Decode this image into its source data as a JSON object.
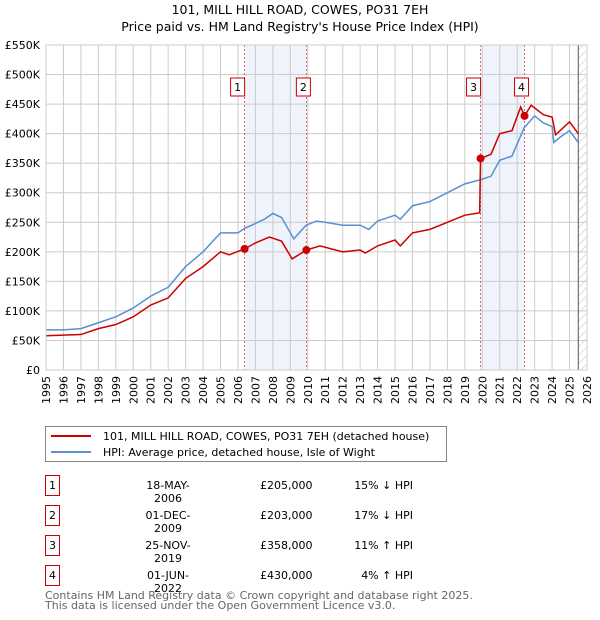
{
  "chart_data": {
    "type": "line",
    "title": "101, MILL HILL ROAD, COWES, PO31 7EH",
    "subtitle": "Price paid vs. HM Land Registry's House Price Index (HPI)",
    "xlim": [
      1995,
      2026
    ],
    "ylim": [
      0,
      550000
    ],
    "x_ticks": [
      "1995",
      "1996",
      "1997",
      "1998",
      "1999",
      "2000",
      "2001",
      "2002",
      "2003",
      "2004",
      "2005",
      "2006",
      "2007",
      "2008",
      "2009",
      "2010",
      "2011",
      "2012",
      "2013",
      "2014",
      "2015",
      "2016",
      "2017",
      "2018",
      "2019",
      "2020",
      "2021",
      "2022",
      "2023",
      "2024",
      "2025",
      "2026"
    ],
    "y_ticks": [
      "£0",
      "£50K",
      "£100K",
      "£150K",
      "£200K",
      "£250K",
      "£300K",
      "£350K",
      "£400K",
      "£450K",
      "£500K",
      "£550K"
    ],
    "grid": true,
    "series": [
      {
        "name": "101, MILL HILL ROAD, COWES, PO31 7EH (detached house)",
        "color": "#cc0000",
        "x": [
          1995,
          1997,
          1998,
          1999,
          2000,
          2001,
          2002,
          2003,
          2004,
          2005,
          2005.5,
          2006.38,
          2007,
          2007.8,
          2008.5,
          2009.1,
          2009.92,
          2010.7,
          2012,
          2013,
          2013.3,
          2014,
          2015,
          2015.3,
          2016,
          2017,
          2018,
          2019,
          2019.85,
          2019.9,
          2020.5,
          2021,
          2021.7,
          2022.2,
          2022.42,
          2022.8,
          2023.5,
          2024,
          2024.2,
          2025,
          2025.5
        ],
        "y": [
          58000,
          60000,
          70000,
          77000,
          90000,
          110000,
          122000,
          155000,
          175000,
          200000,
          195000,
          205000,
          215000,
          225000,
          218000,
          188000,
          203000,
          210000,
          200000,
          203000,
          198000,
          210000,
          220000,
          210000,
          232000,
          238000,
          250000,
          262000,
          266000,
          358000,
          365000,
          400000,
          405000,
          445000,
          430000,
          448000,
          432000,
          428000,
          398000,
          420000,
          400000
        ]
      },
      {
        "name": "HPI: Average price, detached house, Isle of Wight",
        "color": "#5b8fd0",
        "x": [
          1995,
          1996,
          1997,
          1998,
          1999,
          2000,
          2001,
          2002,
          2003,
          2004,
          2005,
          2006,
          2006.4,
          2007,
          2007.5,
          2008,
          2008.5,
          2009.2,
          2009.9,
          2010.5,
          2011,
          2012,
          2013,
          2013.5,
          2014,
          2015,
          2015.3,
          2016,
          2017,
          2018,
          2019,
          2019.9,
          2020.5,
          2021,
          2021.7,
          2022.4,
          2023,
          2023.5,
          2024,
          2024.1,
          2024.5,
          2025,
          2025.5
        ],
        "y": [
          68000,
          68000,
          70000,
          80000,
          90000,
          105000,
          125000,
          140000,
          175000,
          200000,
          232000,
          232000,
          240000,
          248000,
          255000,
          265000,
          258000,
          222000,
          245000,
          252000,
          250000,
          245000,
          245000,
          238000,
          252000,
          262000,
          255000,
          278000,
          285000,
          300000,
          315000,
          322000,
          328000,
          355000,
          362000,
          410000,
          430000,
          418000,
          412000,
          385000,
          395000,
          405000,
          385000
        ]
      }
    ],
    "shaded_ranges": [
      [
        2006.38,
        2009.92
      ],
      [
        2019.9,
        2022.42
      ]
    ],
    "forecast_start": 2025.5,
    "sales": [
      {
        "label": "1",
        "x": 2006.38,
        "y": 205000
      },
      {
        "label": "2",
        "x": 2009.92,
        "y": 203000
      },
      {
        "label": "3",
        "x": 2019.9,
        "y": 358000
      },
      {
        "label": "4",
        "x": 2022.42,
        "y": 430000
      }
    ]
  },
  "table": [
    {
      "num": "1",
      "date": "18-MAY-2006",
      "price": "£205,000",
      "hpi": "15% ↓ HPI"
    },
    {
      "num": "2",
      "date": "01-DEC-2009",
      "price": "£203,000",
      "hpi": "17% ↓ HPI"
    },
    {
      "num": "3",
      "date": "25-NOV-2019",
      "price": "£358,000",
      "hpi": "11% ↑ HPI"
    },
    {
      "num": "4",
      "date": "01-JUN-2022",
      "price": "£430,000",
      "hpi": "4% ↑ HPI"
    }
  ],
  "footer": {
    "line1": "Contains HM Land Registry data © Crown copyright and database right 2025.",
    "line2": "This data is licensed under the Open Government Licence v3.0."
  }
}
